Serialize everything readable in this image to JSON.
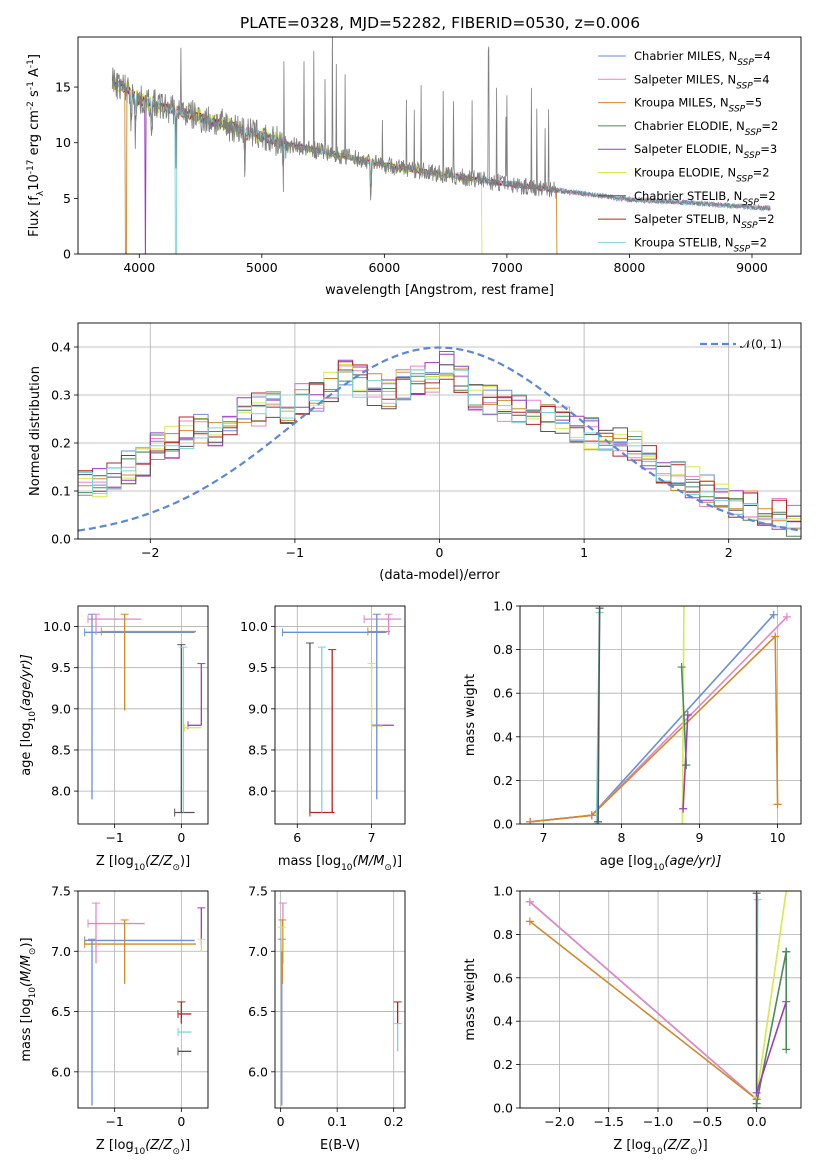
{
  "figure": {
    "title": "PLATE=0328, MJD=52282, FIBERID=0530, z=0.006"
  },
  "models": [
    {
      "name": "Chabrier MILES, N",
      "sub": "SSP",
      "n": "=4",
      "color": "#6a8ed8"
    },
    {
      "name": "Salpeter MILES, N",
      "sub": "SSP",
      "n": "=4",
      "color": "#e487c6"
    },
    {
      "name": "Kroupa MILES, N",
      "sub": "SSP",
      "n": "=5",
      "color": "#d08a2c"
    },
    {
      "name": "Chabrier ELODIE, N",
      "sub": "SSP",
      "n": "=2",
      "color": "#4e8a5a"
    },
    {
      "name": "Salpeter ELODIE, N",
      "sub": "SSP",
      "n": "=3",
      "color": "#9b3dbd"
    },
    {
      "name": "Kroupa ELODIE, N",
      "sub": "SSP",
      "n": "=2",
      "color": "#d4ea4e"
    },
    {
      "name": "Chabrier STELIB, N",
      "sub": "SSP",
      "n": "=2",
      "color": "#555555"
    },
    {
      "name": "Salpeter STELIB, N",
      "sub": "SSP",
      "n": "=2",
      "color": "#b52424"
    },
    {
      "name": "Kroupa STELIB, N",
      "sub": "SSP",
      "n": "=2",
      "color": "#7fd3d8"
    }
  ],
  "chart_data": [
    {
      "id": "spectrum",
      "type": "line",
      "xlabel": "wavelength [Angstrom, rest frame]",
      "ylabel_main": "Flux [f",
      "ylabel_sub": "λ",
      "ylabel_rest": "10",
      "ylabel_sup": "-17",
      "ylabel_tail": " erg cm",
      "ylabel_sup2": "-2",
      "ylabel_tail2": " s",
      "ylabel_sup3": "-1",
      "ylabel_tail3": " A",
      "ylabel_sup4": "-1",
      "ylabel_end": "]",
      "xlim": [
        3500,
        9400
      ],
      "ylim": [
        0,
        19.5
      ],
      "xticks": [
        4000,
        5000,
        6000,
        7000,
        8000,
        9000
      ],
      "yticks": [
        0,
        5,
        10,
        15
      ],
      "data_color": "#7f7f7f",
      "continuum": {
        "x": [
          3780,
          3900,
          4000,
          4200,
          4400,
          4600,
          4800,
          5000,
          5200,
          5500,
          6000,
          6500,
          7000,
          7500,
          8000,
          8500,
          9000,
          9150
        ],
        "y": [
          15.5,
          14.8,
          13.8,
          13.2,
          12.6,
          11.9,
          11.3,
          10.6,
          9.9,
          9.2,
          8.0,
          7.1,
          6.3,
          5.6,
          4.9,
          4.6,
          4.2,
          4.1
        ]
      },
      "grid": false
    },
    {
      "id": "residuals",
      "type": "step",
      "xlabel": "(data-model)/error",
      "ylabel": "Normed distribution",
      "xlim": [
        -2.5,
        2.5
      ],
      "ylim": [
        0,
        0.45
      ],
      "xticks": [
        -2,
        -1,
        0,
        1,
        2
      ],
      "yticks": [
        0.0,
        0.1,
        0.2,
        0.3,
        0.4
      ],
      "gaussian_label": "𝒩(0, 1)",
      "gaussian_color": "#5b87d6",
      "bins_x0": -2.5,
      "bin_width": 0.1,
      "base_series": [
        0.11,
        0.12,
        0.13,
        0.15,
        0.16,
        0.19,
        0.2,
        0.22,
        0.23,
        0.21,
        0.25,
        0.26,
        0.27,
        0.28,
        0.26,
        0.29,
        0.3,
        0.32,
        0.34,
        0.33,
        0.31,
        0.3,
        0.32,
        0.33,
        0.34,
        0.36,
        0.33,
        0.3,
        0.29,
        0.28,
        0.27,
        0.26,
        0.25,
        0.24,
        0.23,
        0.22,
        0.21,
        0.2,
        0.19,
        0.17,
        0.15,
        0.13,
        0.12,
        0.1,
        0.09,
        0.08,
        0.07,
        0.06,
        0.05,
        0.04
      ],
      "grid": true
    },
    {
      "id": "age_vs_Z",
      "type": "scatter",
      "xlabel": "Z [log",
      "xlabel_sub": "10",
      "xlabel_mid": "(Z/Z",
      "xlabel_sub2": "⊙",
      "xlabel_end": ")]",
      "ylabel": "age  [log",
      "ylabel_sub": "10",
      "ylabel_end": "(age/yr)]",
      "xlim": [
        -1.55,
        0.4
      ],
      "ylim": [
        7.6,
        10.25
      ],
      "xticks": [
        -1,
        0
      ],
      "yticks": [
        8.0,
        8.5,
        9.0,
        9.5,
        10.0
      ],
      "grid": true,
      "hlines": [
        {
          "x0": -1.45,
          "x1": 0.2,
          "y": 9.93,
          "model": 0
        },
        {
          "x0": -1.4,
          "x1": -0.6,
          "y": 10.09,
          "model": 1
        },
        {
          "x0": -1.2,
          "x1": 0.22,
          "y": 9.94,
          "model": 2
        },
        {
          "x0": -0.1,
          "x1": 0.2,
          "y": 7.74,
          "model": 6
        },
        {
          "x0": 0.1,
          "x1": 0.3,
          "y": 8.8,
          "model": 4
        },
        {
          "x0": 0.05,
          "x1": 0.3,
          "y": 8.77,
          "model": 5
        }
      ],
      "vlines": [
        {
          "x": -1.34,
          "y0": 7.9,
          "y1": 10.15,
          "model": 0
        },
        {
          "x": -1.28,
          "y0": 9.9,
          "y1": 10.15,
          "model": 1
        },
        {
          "x": -0.85,
          "y0": 8.98,
          "y1": 10.15,
          "model": 2
        },
        {
          "x": 0.0,
          "y0": 7.74,
          "y1": 9.78,
          "model": 6
        },
        {
          "x": 0.03,
          "y0": 7.74,
          "y1": 9.75,
          "model": 8
        },
        {
          "x": 0.3,
          "y0": 8.8,
          "y1": 9.55,
          "model": 4
        }
      ]
    },
    {
      "id": "age_vs_mass",
      "type": "scatter",
      "xlabel": "mass [log",
      "xlabel_sub": "10",
      "xlabel_mid": "(M/M",
      "xlabel_sub2": "⊙",
      "xlabel_end": ")]",
      "xlim": [
        5.7,
        7.45
      ],
      "ylim": [
        7.6,
        10.25
      ],
      "xticks": [
        6,
        7
      ],
      "yticks": [
        8.0,
        8.5,
        9.0,
        9.5,
        10.0
      ],
      "grid": true,
      "hlines": [
        {
          "x0": 5.8,
          "x1": 7.2,
          "y": 9.93,
          "model": 0
        },
        {
          "x0": 6.9,
          "x1": 7.4,
          "y": 10.09,
          "model": 1
        },
        {
          "x0": 6.95,
          "x1": 7.25,
          "y": 9.94,
          "model": 2
        },
        {
          "x0": 6.17,
          "x1": 6.5,
          "y": 7.74,
          "model": 7
        },
        {
          "x0": 7.0,
          "x1": 7.3,
          "y": 8.8,
          "model": 4
        },
        {
          "x0": 7.0,
          "x1": 7.15,
          "y": 8.79,
          "model": 5
        }
      ],
      "vlines": [
        {
          "x": 6.17,
          "y0": 7.74,
          "y1": 9.8,
          "model": 6
        },
        {
          "x": 6.33,
          "y0": 7.74,
          "y1": 9.75,
          "model": 8
        },
        {
          "x": 6.47,
          "y0": 7.74,
          "y1": 9.72,
          "model": 7
        },
        {
          "x": 7.0,
          "y0": 8.8,
          "y1": 9.55,
          "model": 5
        },
        {
          "x": 7.07,
          "y0": 7.9,
          "y1": 10.15,
          "model": 0
        },
        {
          "x": 7.23,
          "y0": 9.9,
          "y1": 10.15,
          "model": 1
        }
      ]
    },
    {
      "id": "massweight_vs_age",
      "type": "line",
      "xlabel": "age  [log",
      "xlabel_sub": "10",
      "xlabel_end": "(age/yr)]",
      "ylabel": "mass weight",
      "xlim": [
        6.7,
        10.3
      ],
      "ylim": [
        0.0,
        1.0
      ],
      "xticks": [
        7,
        8,
        9,
        10
      ],
      "yticks": [
        0.0,
        0.2,
        0.4,
        0.6,
        0.8,
        1.0
      ],
      "grid": true,
      "lines": [
        {
          "model": 0,
          "x": [
            6.83,
            7.62,
            9.95
          ],
          "y": [
            0.01,
            0.04,
            0.96
          ]
        },
        {
          "model": 1,
          "x": [
            6.83,
            7.62,
            10.12
          ],
          "y": [
            0.01,
            0.04,
            0.95
          ]
        },
        {
          "model": 2,
          "x": [
            6.83,
            7.62,
            9.97,
            10.0
          ],
          "y": [
            0.01,
            0.04,
            0.86,
            0.09
          ]
        },
        {
          "model": 8,
          "x": [
            7.68,
            7.72
          ],
          "y": [
            0.0,
            0.97
          ]
        },
        {
          "model": 6,
          "x": [
            7.7,
            7.72
          ],
          "y": [
            0.01,
            0.99
          ]
        },
        {
          "model": 5,
          "x": [
            8.78,
            8.8
          ],
          "y": [
            0.0,
            1.0
          ]
        },
        {
          "model": 3,
          "x": [
            8.77,
            8.83
          ],
          "y": [
            0.72,
            0.27
          ]
        },
        {
          "model": 4,
          "x": [
            8.79,
            8.85
          ],
          "y": [
            0.07,
            0.5
          ]
        }
      ]
    },
    {
      "id": "mass_vs_Z",
      "type": "scatter",
      "xlabel": "Z [log",
      "xlabel_sub": "10",
      "xlabel_mid": "(Z/Z",
      "xlabel_sub2": "⊙",
      "xlabel_end": ")]",
      "ylabel": "mass [log",
      "ylabel_sub": "10",
      "ylabel_mid": "(M/M",
      "ylabel_sub2": "⊙",
      "ylabel_end": ")]",
      "xlim": [
        -1.55,
        0.4
      ],
      "ylim": [
        5.7,
        7.5
      ],
      "xticks": [
        -1,
        0
      ],
      "yticks": [
        6.0,
        6.5,
        7.0,
        7.5
      ],
      "grid": true,
      "hlines": [
        {
          "x0": -1.45,
          "x1": 0.2,
          "y": 7.09,
          "model": 0
        },
        {
          "x0": -1.4,
          "x1": -0.55,
          "y": 7.23,
          "model": 1
        },
        {
          "x0": -1.45,
          "x1": 0.22,
          "y": 7.06,
          "model": 2
        },
        {
          "x0": -0.05,
          "x1": 0.15,
          "y": 6.48,
          "model": 7
        },
        {
          "x0": -0.05,
          "x1": 0.15,
          "y": 6.33,
          "model": 8
        },
        {
          "x0": -0.05,
          "x1": 0.15,
          "y": 6.17,
          "model": 6
        }
      ],
      "vlines": [
        {
          "x": -1.34,
          "y0": 5.72,
          "y1": 7.1,
          "model": 0
        },
        {
          "x": -1.28,
          "y0": 6.9,
          "y1": 7.4,
          "model": 1
        },
        {
          "x": -0.85,
          "y0": 6.73,
          "y1": 7.26,
          "model": 2
        },
        {
          "x": 0.0,
          "y0": 6.4,
          "y1": 6.58,
          "model": 7
        },
        {
          "x": 0.3,
          "y0": 7.05,
          "y1": 7.36,
          "model": 4
        },
        {
          "x": 0.3,
          "y0": 7.0,
          "y1": 7.1,
          "model": 5
        }
      ]
    },
    {
      "id": "mass_vs_ebv",
      "type": "scatter",
      "xlabel": "E(B-V)",
      "xlim": [
        -0.01,
        0.22
      ],
      "ylim": [
        5.7,
        7.5
      ],
      "xticks": [
        0.0,
        0.1,
        0.2
      ],
      "yticks": [
        6.0,
        6.5,
        7.0,
        7.5
      ],
      "grid": true,
      "vlines": [
        {
          "x": 0.002,
          "y0": 5.72,
          "y1": 7.1,
          "model": 0
        },
        {
          "x": 0.004,
          "y0": 6.9,
          "y1": 7.4,
          "model": 1
        },
        {
          "x": 0.003,
          "y0": 6.73,
          "y1": 7.26,
          "model": 2
        },
        {
          "x": 0.002,
          "y0": 7.0,
          "y1": 7.2,
          "model": 5
        },
        {
          "x": 0.207,
          "y0": 6.4,
          "y1": 6.58,
          "model": 7
        },
        {
          "x": 0.207,
          "y0": 6.17,
          "y1": 6.4,
          "model": 8
        }
      ]
    },
    {
      "id": "massweight_vs_Z",
      "type": "line",
      "xlabel": "Z [log",
      "xlabel_sub": "10",
      "xlabel_mid": "(Z/Z",
      "xlabel_sub2": "⊙",
      "xlabel_end": ")]",
      "ylabel": "mass weight",
      "xlim": [
        -2.4,
        0.45
      ],
      "ylim": [
        0.0,
        1.0
      ],
      "xticks": [
        -2.0,
        -1.5,
        -1.0,
        -0.5,
        0.0
      ],
      "xticklabels": [
        "−2.0",
        "−1.5",
        "−1.0",
        "−0.5",
        "0.0"
      ],
      "yticks": [
        0.0,
        0.2,
        0.4,
        0.6,
        0.8,
        1.0
      ],
      "grid": true,
      "lines": [
        {
          "model": 0,
          "x": [
            -2.3,
            0.0
          ],
          "y": [
            0.95,
            0.04
          ]
        },
        {
          "model": 1,
          "x": [
            -2.3,
            0.0
          ],
          "y": [
            0.95,
            0.04
          ]
        },
        {
          "model": 2,
          "x": [
            -2.3,
            0.0
          ],
          "y": [
            0.86,
            0.04
          ]
        },
        {
          "model": 8,
          "x": [
            0.0,
            0.01
          ],
          "y": [
            0.0,
            0.96
          ]
        },
        {
          "model": 6,
          "x": [
            0.0,
            0.0
          ],
          "y": [
            0.0,
            0.99
          ]
        },
        {
          "model": 5,
          "x": [
            0.0,
            0.3
          ],
          "y": [
            0.05,
            1.0
          ]
        },
        {
          "model": 3,
          "x": [
            0.0,
            0.3
          ],
          "y": [
            0.02,
            0.72
          ]
        },
        {
          "model": 4,
          "x": [
            0.0,
            0.3
          ],
          "y": [
            0.07,
            0.49
          ]
        },
        {
          "model": 3,
          "x": [
            0.3,
            0.3
          ],
          "y": [
            0.27,
            0.72
          ]
        }
      ]
    }
  ]
}
